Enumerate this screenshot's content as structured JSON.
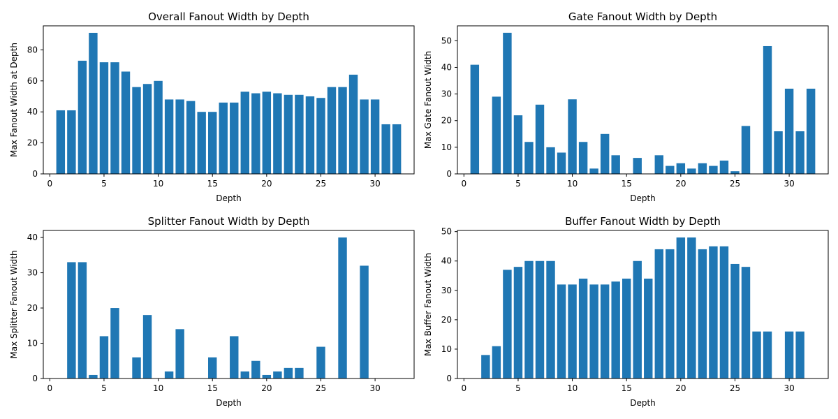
{
  "chart_data": [
    {
      "type": "bar",
      "title": "Overall Fanout Width by Depth",
      "xlabel": "Depth",
      "ylabel": "Max Fanout Width at Depth",
      "xlim": [
        -0.6,
        33.6
      ],
      "ylim": [
        0,
        95.5
      ],
      "xticks": [
        0,
        5,
        10,
        15,
        20,
        25,
        30
      ],
      "yticks": [
        0,
        20,
        40,
        60,
        80
      ],
      "x": [
        1,
        2,
        3,
        4,
        5,
        6,
        7,
        8,
        9,
        10,
        11,
        12,
        13,
        14,
        15,
        16,
        17,
        18,
        19,
        20,
        21,
        22,
        23,
        24,
        25,
        26,
        27,
        28,
        29,
        30,
        31,
        32
      ],
      "values": [
        41,
        41,
        73,
        91,
        72,
        72,
        66,
        56,
        58,
        60,
        48,
        48,
        47,
        40,
        40,
        46,
        46,
        53,
        52,
        53,
        52,
        51,
        51,
        50,
        49,
        56,
        56,
        64,
        48,
        48,
        32,
        32
      ]
    },
    {
      "type": "bar",
      "title": "Gate Fanout Width by Depth",
      "xlabel": "Depth",
      "ylabel": "Max Gate Fanout Width",
      "xlim": [
        -0.6,
        33.6
      ],
      "ylim": [
        0,
        55.6
      ],
      "xticks": [
        0,
        5,
        10,
        15,
        20,
        25,
        30
      ],
      "yticks": [
        0,
        10,
        20,
        30,
        40,
        50
      ],
      "x": [
        1,
        2,
        3,
        4,
        5,
        6,
        7,
        8,
        9,
        10,
        11,
        12,
        13,
        14,
        15,
        16,
        17,
        18,
        19,
        20,
        21,
        22,
        23,
        24,
        25,
        26,
        27,
        28,
        29,
        30,
        31,
        32
      ],
      "values": [
        41,
        0,
        29,
        53,
        22,
        12,
        26,
        10,
        8,
        28,
        12,
        2,
        15,
        7,
        0,
        6,
        0,
        7,
        3,
        4,
        2,
        4,
        3,
        5,
        1,
        18,
        0,
        48,
        16,
        32,
        16,
        32
      ]
    },
    {
      "type": "bar",
      "title": "Splitter Fanout Width by Depth",
      "xlabel": "Depth",
      "ylabel": "Max Splitter Fanout Width",
      "xlim": [
        -0.6,
        33.6
      ],
      "ylim": [
        0,
        42
      ],
      "xticks": [
        0,
        5,
        10,
        15,
        20,
        25,
        30
      ],
      "yticks": [
        0,
        10,
        20,
        30,
        40
      ],
      "x": [
        1,
        2,
        3,
        4,
        5,
        6,
        7,
        8,
        9,
        10,
        11,
        12,
        13,
        14,
        15,
        16,
        17,
        18,
        19,
        20,
        21,
        22,
        23,
        24,
        25,
        26,
        27,
        28,
        29,
        30,
        31,
        32
      ],
      "values": [
        0,
        33,
        33,
        1,
        12,
        20,
        0,
        6,
        18,
        0,
        2,
        14,
        0,
        0,
        6,
        0,
        12,
        2,
        5,
        1,
        2,
        3,
        3,
        0,
        9,
        0,
        40,
        0,
        32,
        0,
        0,
        0
      ]
    },
    {
      "type": "bar",
      "title": "Buffer Fanout Width by Depth",
      "xlabel": "Depth",
      "ylabel": "Max Buffer Fanout Width",
      "xlim": [
        -0.6,
        33.6
      ],
      "ylim": [
        0,
        50.4
      ],
      "xticks": [
        0,
        5,
        10,
        15,
        20,
        25,
        30
      ],
      "yticks": [
        0,
        10,
        20,
        30,
        40,
        50
      ],
      "x": [
        1,
        2,
        3,
        4,
        5,
        6,
        7,
        8,
        9,
        10,
        11,
        12,
        13,
        14,
        15,
        16,
        17,
        18,
        19,
        20,
        21,
        22,
        23,
        24,
        25,
        26,
        27,
        28,
        29,
        30,
        31
      ],
      "values": [
        0,
        8,
        11,
        37,
        38,
        40,
        40,
        40,
        32,
        32,
        34,
        32,
        32,
        33,
        34,
        40,
        34,
        44,
        44,
        48,
        48,
        44,
        45,
        45,
        39,
        38,
        16,
        16,
        0,
        16,
        16
      ]
    }
  ]
}
